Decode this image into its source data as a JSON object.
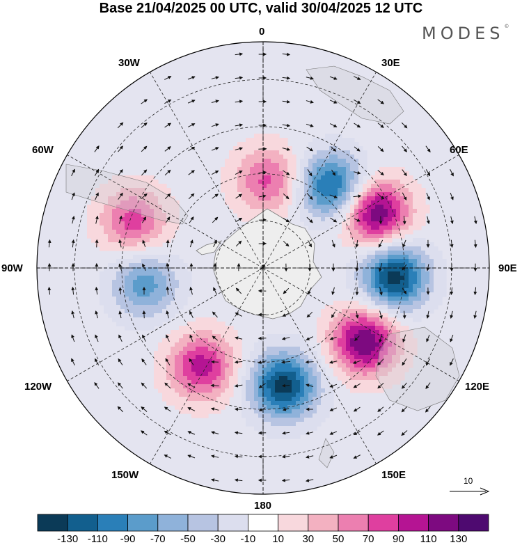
{
  "title": "Base 21/04/2025 00 UTC, valid 30/04/2025 12 UTC",
  "brand": "MODES",
  "brand_mark": "©",
  "longitude_labels": {
    "lon_0": "0",
    "lon_30e": "30E",
    "lon_60e": "60E",
    "lon_90e": "90E",
    "lon_120e": "120E",
    "lon_150e": "150E",
    "lon_180": "180",
    "lon_150w": "150W",
    "lon_120w": "120W",
    "lon_90w": "90W",
    "lon_60w": "60W",
    "lon_30w": "30W"
  },
  "reference_vector": {
    "label": "10",
    "magnitude": 10
  },
  "colorbar": {
    "ticks": [
      "-130",
      "-110",
      "-90",
      "-70",
      "-50",
      "-30",
      "-10",
      "10",
      "30",
      "50",
      "70",
      "90",
      "110",
      "130"
    ],
    "colors": [
      "#0b3a57",
      "#125f8e",
      "#2a7fb8",
      "#5b9ccb",
      "#8fb2da",
      "#b7c4e2",
      "#dcdeee",
      "#ffffff",
      "#f8d8dd",
      "#f3b1c1",
      "#ec7fb0",
      "#df3f9f",
      "#b51493",
      "#7d0a80",
      "#4e0a70"
    ]
  },
  "map": {
    "projection": "south polar stereographic",
    "centers": [
      {
        "lon": 40,
        "colat": 34,
        "value": -120
      },
      {
        "lon": 64,
        "colat": 40,
        "value": 130
      },
      {
        "lon": 94,
        "colat": 42,
        "value": -140
      },
      {
        "lon": 126,
        "colat": 40,
        "value": 130
      },
      {
        "lon": 170,
        "colat": 38,
        "value": -140
      },
      {
        "lon": 212,
        "colat": 37,
        "value": 100
      },
      {
        "lon": 262,
        "colat": 38,
        "value": -80
      },
      {
        "lon": 290,
        "colat": 44,
        "value": 80
      },
      {
        "lon": 3,
        "colat": 28,
        "value": 75
      }
    ]
  }
}
